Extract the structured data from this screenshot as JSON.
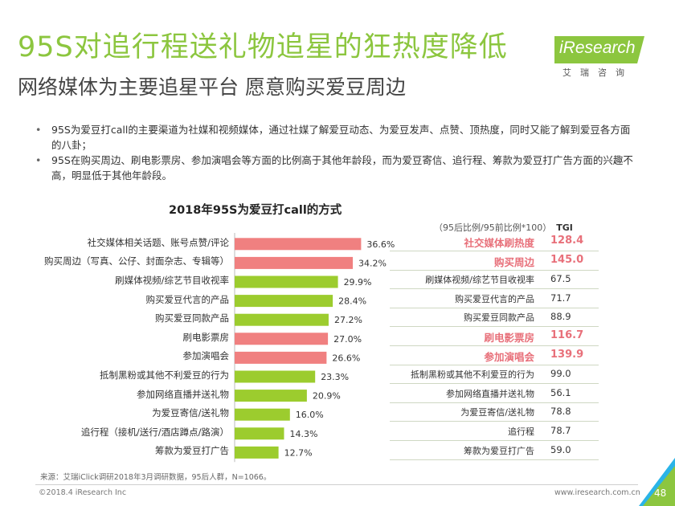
{
  "header": {
    "title": "95S对追行程送礼物追星的狂热度降低",
    "subtitle": "网络媒体为主要追星平台 愿意购买爱豆周边"
  },
  "logo": {
    "text": "iResearch",
    "cn": "艾瑞咨询"
  },
  "bullets": [
    "95S为爱豆打call的主要渠道为社媒和视频媒体，通过社媒了解爱豆动态、为爱豆发声、点赞、顶热度，同时又能了解到爱豆各方面的八卦；",
    "95S在购买周边、刷电影票房、参加演唱会等方面的比例高于其他年龄段，而为爱豆寄信、追行程、筹款为爱豆打广告方面的兴趣不高，明显低于其他年龄段。"
  ],
  "tgi_header": {
    "caption": "（95后比例/95前比例*100）",
    "label": "TGI"
  },
  "colors": {
    "accent": "#8cc63f",
    "highlight": "#f08080",
    "bar_normal": "#9ccc2e",
    "table_highlight_text": "#e8707a"
  },
  "chart_data": {
    "type": "bar",
    "orientation": "horizontal",
    "title": "2018年95S为爱豆打call的方式",
    "categories": [
      "社交媒体相关话题、账号点赞/评论",
      "购买周边（写真、公仔、封面杂志、专辑等）",
      "刷媒体视频/综艺节目收视率",
      "购买爱豆代言的产品",
      "购买爱豆同款产品",
      "刷电影票房",
      "参加演唱会",
      "抵制黑粉或其他不利爱豆的行为",
      "参加网络直播并送礼物",
      "为爱豆寄信/送礼物",
      "追行程（接机/送行/酒店蹲点/路演）",
      "筹款为爱豆打广告"
    ],
    "values": [
      36.6,
      34.2,
      29.9,
      28.4,
      27.2,
      27.0,
      26.6,
      23.3,
      20.9,
      16.0,
      14.3,
      12.7
    ],
    "value_labels": [
      "36.6%",
      "34.2%",
      "29.9%",
      "28.4%",
      "27.2%",
      "27.0%",
      "26.6%",
      "23.3%",
      "20.9%",
      "16.0%",
      "14.3%",
      "12.7%"
    ],
    "highlighted": [
      true,
      true,
      false,
      false,
      false,
      true,
      true,
      false,
      false,
      false,
      false,
      false
    ],
    "unit": "%",
    "tgi": {
      "labels": [
        "社交媒体刷热度",
        "购买周边",
        "刷媒体视频/综艺节目收视率",
        "购买爱豆代言的产品",
        "购买爱豆同款产品",
        "刷电影票房",
        "参加演唱会",
        "抵制黑粉或其他不利爱豆的行为",
        "参加网络直播并送礼物",
        "为爱豆寄信/送礼物",
        "追行程",
        "筹款为爱豆打广告"
      ],
      "values": [
        "128.4",
        "145.0",
        "67.5",
        "71.7",
        "88.9",
        "116.7",
        "139.9",
        "99.0",
        "56.1",
        "78.8",
        "78.7",
        "59.0"
      ],
      "highlighted": [
        true,
        true,
        false,
        false,
        false,
        true,
        true,
        false,
        false,
        false,
        false,
        false
      ]
    }
  },
  "footer": {
    "source": "来源：艾瑞iClick调研2018年3月调研数据，95后人群，N=1066。",
    "copyright": "©2018.4 iResearch Inc",
    "website": "www.iresearch.com.cn",
    "page": "48"
  }
}
